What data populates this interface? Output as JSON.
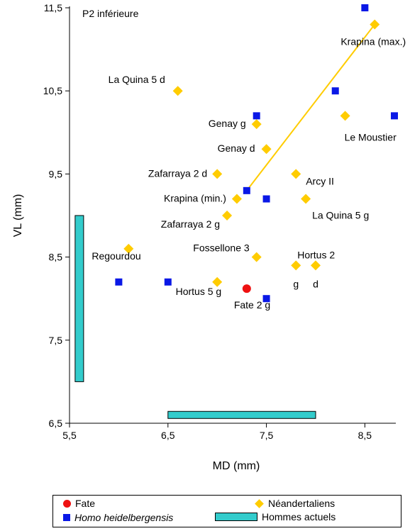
{
  "chart_data": {
    "type": "scatter",
    "title": "P2 inférieure",
    "xlabel": "MD (mm)",
    "ylabel": "VL (mm)",
    "xlim": [
      5.5,
      8.8
    ],
    "ylim": [
      6.5,
      11.5
    ],
    "xticks": [
      "5,5",
      "6,5",
      "7,5",
      "8,5"
    ],
    "yticks": [
      "6,5",
      "7,5",
      "8,5",
      "9,5",
      "10,5",
      "11,5"
    ],
    "colors": {
      "fate": "#ee1111",
      "neandertal": "#ffcc00",
      "heidelbergensis": "#0a18e6",
      "modern": "#33cccc",
      "trend": "#ffcc00"
    },
    "series": [
      {
        "name": "Fate",
        "marker": "circle",
        "points": [
          {
            "x": 7.3,
            "y": 8.12
          }
        ]
      },
      {
        "name": "Néandertaliens",
        "marker": "diamond",
        "points": [
          {
            "x": 8.6,
            "y": 11.3
          },
          {
            "x": 6.6,
            "y": 10.5
          },
          {
            "x": 8.3,
            "y": 10.2
          },
          {
            "x": 7.4,
            "y": 10.1
          },
          {
            "x": 7.5,
            "y": 9.8
          },
          {
            "x": 7.0,
            "y": 9.5
          },
          {
            "x": 7.8,
            "y": 9.5
          },
          {
            "x": 7.2,
            "y": 9.2
          },
          {
            "x": 7.9,
            "y": 9.2
          },
          {
            "x": 7.1,
            "y": 9.0
          },
          {
            "x": 6.1,
            "y": 8.6
          },
          {
            "x": 7.4,
            "y": 8.5
          },
          {
            "x": 7.8,
            "y": 8.4
          },
          {
            "x": 8.0,
            "y": 8.4
          },
          {
            "x": 7.0,
            "y": 8.2
          }
        ]
      },
      {
        "name": "Homo heidelbergensis",
        "marker": "square",
        "points": [
          {
            "x": 8.5,
            "y": 11.5
          },
          {
            "x": 8.2,
            "y": 10.5
          },
          {
            "x": 7.4,
            "y": 10.2
          },
          {
            "x": 8.8,
            "y": 10.2
          },
          {
            "x": 7.3,
            "y": 9.3
          },
          {
            "x": 7.5,
            "y": 9.2
          },
          {
            "x": 6.0,
            "y": 8.2
          },
          {
            "x": 6.5,
            "y": 8.2
          },
          {
            "x": 7.5,
            "y": 8.0
          }
        ]
      },
      {
        "name": "Hommes actuels",
        "marker": "range",
        "ranges": [
          {
            "axis": "VL",
            "at": 5.6,
            "from": 7.0,
            "to": 9.0
          },
          {
            "axis": "MD",
            "at": 6.6,
            "from": 6.5,
            "to": 8.0
          }
        ]
      }
    ],
    "trendline": {
      "from": {
        "x": 7.3,
        "y": 9.3
      },
      "to": {
        "x": 8.6,
        "y": 11.3
      }
    },
    "annotations": [
      {
        "text": "Krapina (max.)",
        "x": 8.6,
        "y": 11.3
      },
      {
        "text": "La Quina 5 d",
        "x": 6.6,
        "y": 10.5
      },
      {
        "text": "Genay g",
        "x": 7.4,
        "y": 10.1
      },
      {
        "text": "Le Moustier",
        "x": 8.3,
        "y": 10.2
      },
      {
        "text": "Genay d",
        "x": 7.5,
        "y": 9.8
      },
      {
        "text": "Zafarraya 2 d",
        "x": 7.0,
        "y": 9.5
      },
      {
        "text": "Arcy II",
        "x": 7.8,
        "y": 9.5
      },
      {
        "text": "Krapina (min.)",
        "x": 7.2,
        "y": 9.2
      },
      {
        "text": "La Quina 5 g",
        "x": 7.9,
        "y": 9.2
      },
      {
        "text": "Zafarraya 2 g",
        "x": 7.1,
        "y": 9.0
      },
      {
        "text": "Fossellone 3",
        "x": 7.4,
        "y": 8.5
      },
      {
        "text": "Hortus 2",
        "x": 7.9,
        "y": 8.4
      },
      {
        "text": "Regourdou",
        "x": 6.1,
        "y": 8.6
      },
      {
        "text": "Hortus 5 g",
        "x": 7.0,
        "y": 8.2
      },
      {
        "text": "g",
        "x": 7.8,
        "y": 8.4
      },
      {
        "text": "d",
        "x": 8.0,
        "y": 8.4
      },
      {
        "text": "Fate 2 g",
        "x": 7.3,
        "y": 8.12
      }
    ]
  },
  "legend": {
    "fate": "Fate",
    "neandertal": "Néandertaliens",
    "heidelbergensis": "Homo heidelbergensis",
    "modern": "Hommes actuels"
  }
}
